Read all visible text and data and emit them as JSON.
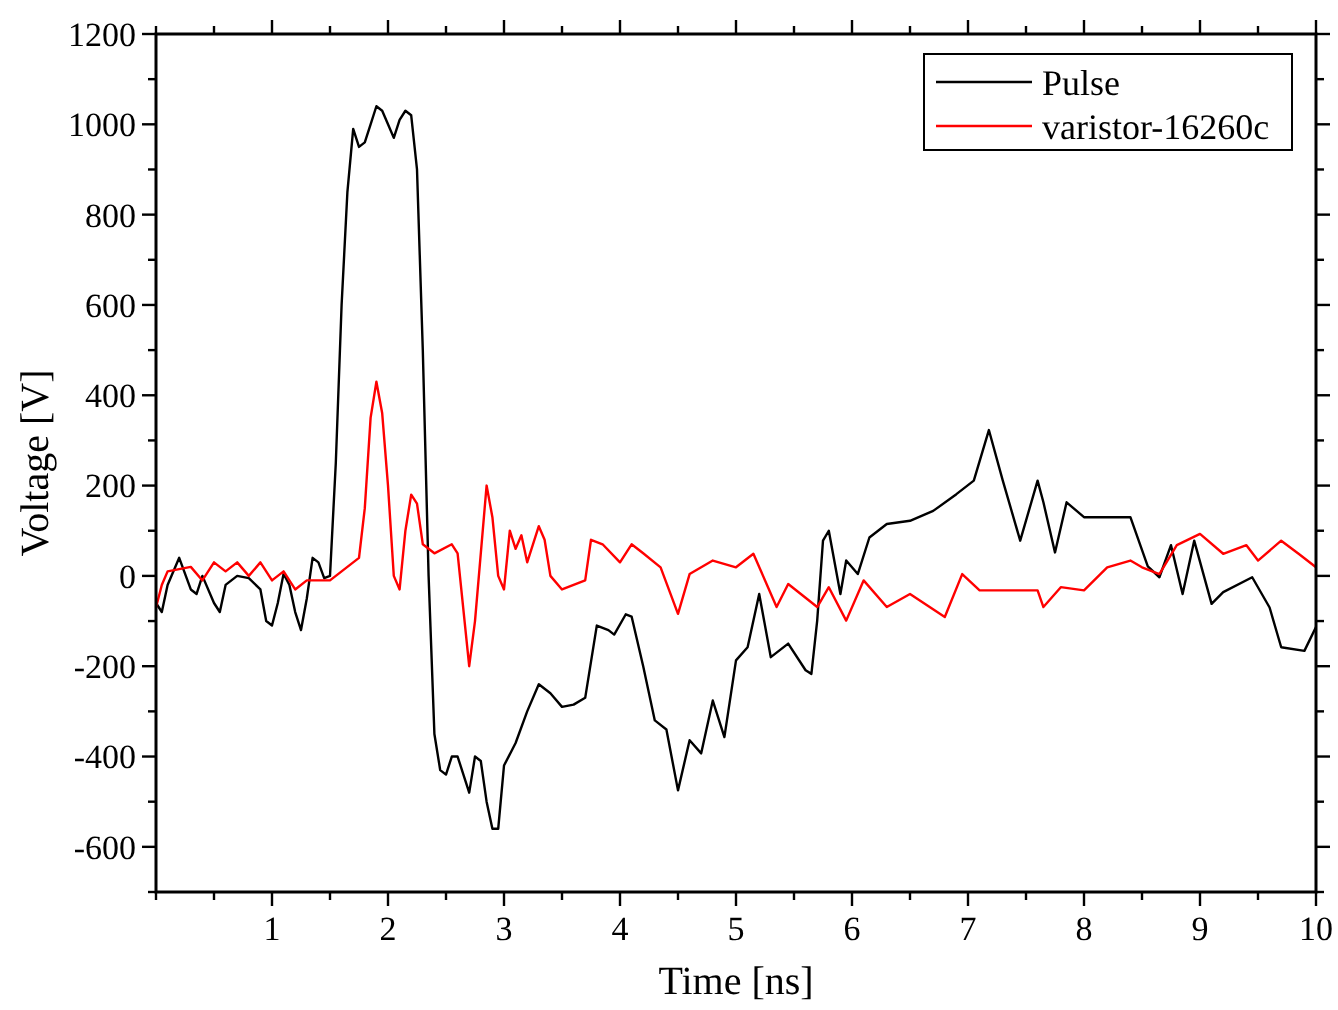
{
  "chart_data": {
    "type": "line",
    "xlabel": "Time [ns]",
    "ylabel": "Voltage [V]",
    "xlim": [
      0,
      10
    ],
    "ylim": [
      -700,
      1200
    ],
    "xticks": [
      {
        "value": 0,
        "label": null
      },
      {
        "value": 0.5,
        "label": null
      },
      1,
      {
        "value": 1.5,
        "label": null
      },
      2,
      {
        "value": 2.5,
        "label": null
      },
      3,
      {
        "value": 3.5,
        "label": null
      },
      4,
      {
        "value": 4.5,
        "label": null
      },
      5,
      {
        "value": 5.5,
        "label": null
      },
      6,
      {
        "value": 6.5,
        "label": null
      },
      7,
      {
        "value": 7.5,
        "label": null
      },
      8,
      {
        "value": 8.5,
        "label": null
      },
      9,
      {
        "value": 9.5,
        "label": null
      },
      10
    ],
    "yticks": [
      {
        "value": -700,
        "label": null
      },
      -600,
      {
        "value": -500,
        "label": null
      },
      -400,
      {
        "value": -300,
        "label": null
      },
      -200,
      {
        "value": -100,
        "label": null
      },
      0,
      {
        "value": 100,
        "label": null
      },
      200,
      {
        "value": 300,
        "label": null
      },
      400,
      {
        "value": 500,
        "label": null
      },
      600,
      {
        "value": 700,
        "label": null
      },
      800,
      {
        "value": 900,
        "label": null
      },
      1000,
      {
        "value": 1100,
        "label": null
      },
      1200
    ],
    "grid": false,
    "legend": "top right",
    "marker": "none",
    "line_style": "solid",
    "series": [
      {
        "name": "Pulse",
        "color": "#000000",
        "x": [
          0,
          0.05,
          0.1,
          0.2,
          0.3,
          0.35,
          0.4,
          0.5,
          0.55,
          0.6,
          0.7,
          0.8,
          0.9,
          0.95,
          1.0,
          1.05,
          1.1,
          1.15,
          1.2,
          1.25,
          1.3,
          1.35,
          1.4,
          1.45,
          1.5,
          1.55,
          1.6,
          1.65,
          1.7,
          1.75,
          1.8,
          1.85,
          1.9,
          1.95,
          2.0,
          2.05,
          2.1,
          2.15,
          2.2,
          2.25,
          2.3,
          2.35,
          2.4,
          2.45,
          2.5,
          2.55,
          2.6,
          2.7,
          2.75,
          2.8,
          2.85,
          2.9,
          2.95,
          3.0,
          3.1,
          3.2,
          3.3,
          3.4,
          3.5,
          3.6,
          3.7,
          3.8,
          3.9,
          3.95,
          4.05,
          4.1,
          4.2,
          4.3,
          4.4,
          4.5,
          4.6,
          4.7,
          4.8,
          4.9,
          5.0,
          5.1,
          5.2,
          5.3,
          5.45,
          5.6,
          5.65,
          5.7,
          5.75,
          5.8,
          5.9,
          5.95,
          6.05,
          6.15,
          6.3,
          6.5,
          6.7,
          6.9,
          7.05,
          7.18,
          7.3,
          7.45,
          7.6,
          7.65,
          7.75,
          7.85,
          8.0,
          8.4,
          8.55,
          8.65,
          8.75,
          8.85,
          8.95,
          9.1,
          9.2,
          9.45,
          9.6,
          9.7,
          9.9,
          10
        ],
        "values": [
          -60,
          -80,
          -20,
          40,
          -30,
          -40,
          0,
          -60,
          -80,
          -20,
          0,
          -5,
          -30,
          -100,
          -110,
          -60,
          5,
          -20,
          -80,
          -120,
          -50,
          40,
          30,
          -5,
          0,
          250,
          600,
          850,
          990,
          950,
          960,
          1000,
          1040,
          1030,
          1000,
          970,
          1010,
          1030,
          1020,
          900,
          500,
          0,
          -350,
          -430,
          -440,
          -400,
          -400,
          -480,
          -400,
          -410,
          -500,
          -560,
          -560,
          -420,
          -370,
          -300,
          -240,
          -260,
          -290,
          -285,
          -270,
          -110,
          -120,
          -130,
          -85,
          -90,
          -200,
          -320,
          -340,
          -475,
          -364,
          -393,
          -276,
          -357,
          -187,
          -158,
          -40,
          -180,
          -150,
          -209,
          -217,
          -99,
          78,
          100,
          -40,
          34,
          4,
          85,
          115,
          122,
          144,
          181,
          211,
          323,
          211,
          78,
          211,
          163,
          52,
          163,
          130,
          130,
          21,
          -3,
          68,
          -40,
          78,
          -62,
          -36,
          -3,
          -70,
          -158,
          -166,
          -113
        ]
      },
      {
        "name": "varistor-16260c",
        "color": "#ff0000",
        "x": [
          0,
          0.05,
          0.1,
          0.3,
          0.4,
          0.5,
          0.6,
          0.7,
          0.8,
          0.9,
          1.0,
          1.1,
          1.2,
          1.3,
          1.4,
          1.5,
          1.6,
          1.7,
          1.75,
          1.8,
          1.85,
          1.9,
          1.95,
          2.0,
          2.05,
          2.1,
          2.15,
          2.2,
          2.25,
          2.3,
          2.4,
          2.55,
          2.6,
          2.7,
          2.75,
          2.8,
          2.85,
          2.9,
          2.95,
          3.0,
          3.05,
          3.1,
          3.15,
          3.2,
          3.3,
          3.35,
          3.4,
          3.5,
          3.6,
          3.7,
          3.75,
          3.85,
          4.0,
          4.1,
          4.2,
          4.35,
          4.5,
          4.6,
          4.8,
          5.0,
          5.15,
          5.35,
          5.45,
          5.7,
          5.8,
          5.95,
          6.1,
          6.3,
          6.5,
          6.8,
          6.95,
          7.1,
          7.6,
          7.65,
          7.8,
          8.0,
          8.2,
          8.4,
          8.5,
          8.65,
          8.8,
          9.0,
          9.2,
          9.4,
          9.5,
          9.7,
          9.85,
          10
        ],
        "values": [
          -70,
          -20,
          10,
          20,
          -10,
          30,
          10,
          30,
          0,
          30,
          -10,
          10,
          -30,
          -10,
          -10,
          -10,
          10,
          30,
          40,
          150,
          350,
          430,
          360,
          200,
          0,
          -30,
          100,
          180,
          160,
          70,
          50,
          70,
          50,
          -200,
          -100,
          50,
          200,
          130,
          0,
          -30,
          100,
          60,
          90,
          30,
          110,
          80,
          0,
          -30,
          -20,
          -10,
          80,
          70,
          30,
          70,
          50,
          19,
          -84,
          4,
          34,
          19,
          49,
          -69,
          -18,
          -69,
          -25,
          -99,
          -10,
          -69,
          -40,
          -91,
          4,
          -32,
          -32,
          -69,
          -25,
          -32,
          19,
          34,
          19,
          4,
          68,
          93,
          49,
          68,
          34,
          78,
          49,
          19
        ]
      }
    ]
  }
}
